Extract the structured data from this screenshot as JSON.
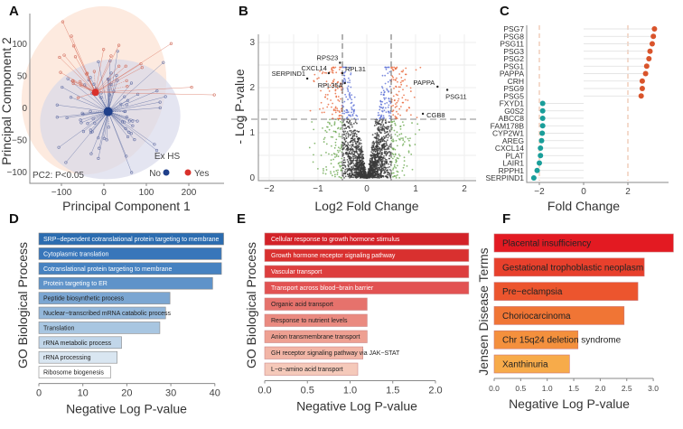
{
  "panels": {
    "A": "A",
    "B": "B",
    "C": "C",
    "D": "D",
    "E": "E",
    "F": "F"
  },
  "chart_data": [
    {
      "panel": "A",
      "type": "scatter",
      "xlabel": "Principal Component 1",
      "ylabel": "Principal Component 2",
      "xticks": [
        -100,
        0,
        100,
        200
      ],
      "yticks": [
        -100,
        -50,
        0,
        50,
        100
      ],
      "xlim": [
        -170,
        270
      ],
      "ylim": [
        -115,
        145
      ],
      "annotation": "PC2: P<0.05",
      "legend": {
        "title": "Ex HS",
        "placement": "bottom-right",
        "items": [
          {
            "name": "No",
            "color": "#1f3f8a"
          },
          {
            "name": "Yes",
            "color": "#d9312b"
          }
        ]
      },
      "centroids": [
        {
          "group": "No",
          "x": 10,
          "y": -5
        },
        {
          "group": "Yes",
          "x": -20,
          "y": 25
        }
      ]
    },
    {
      "panel": "B",
      "type": "scatter",
      "xlabel": "Log2 Fold Change",
      "ylabel": "- Log P-value",
      "xticks": [
        -2,
        -1,
        0,
        1,
        2
      ],
      "yticks": [
        0,
        1,
        2,
        3
      ],
      "xlim": [
        -2.2,
        2.2
      ],
      "ylim": [
        -0.05,
        3.1
      ],
      "thresholds": {
        "fold_change": [
          -0.5,
          0.5
        ],
        "p_value": 1.3
      },
      "colors": {
        "up_sig": "#e8663a",
        "down_sig_small": "#5b6fd6",
        "fc_only": "#6aa84f",
        "ns": "#3a3a3a"
      },
      "labels": [
        {
          "text": "RPS23",
          "x": -0.55,
          "y": 2.55
        },
        {
          "text": "CXCL14",
          "x": -0.78,
          "y": 2.32
        },
        {
          "text": "RPL31",
          "x": -0.5,
          "y": 2.32
        },
        {
          "text": "SERPIND1",
          "x": -1.22,
          "y": 2.2
        },
        {
          "text": "RPL35A",
          "x": -0.45,
          "y": 2.1
        },
        {
          "text": "PAPPA",
          "x": 1.45,
          "y": 2.02
        },
        {
          "text": "PSG11",
          "x": 1.65,
          "y": 1.95
        },
        {
          "text": "CGB8",
          "x": 1.15,
          "y": 1.42
        }
      ]
    },
    {
      "panel": "C",
      "type": "scatter",
      "xlabel": "Fold Change",
      "xticks": [
        -2,
        0,
        2
      ],
      "xlim": [
        -2.6,
        3.4
      ],
      "reference_lines": [
        -2,
        2
      ],
      "colors": {
        "up": "#d9542b",
        "down": "#1a9e9a"
      },
      "genes": [
        "PSG7",
        "PSG8",
        "PSG11",
        "PSG3",
        "PSG2",
        "PSG1",
        "PAPPA",
        "CRH",
        "PSG9",
        "PSG5",
        "FXYD1",
        "G0S2",
        "ABCC8",
        "FAM178B",
        "CYP2W1",
        "AREG",
        "CXCL14",
        "PLAT",
        "LAIR1",
        "RPPH1",
        "SERPIND1"
      ],
      "values": [
        3.2,
        3.15,
        3.1,
        3.0,
        2.95,
        2.85,
        2.8,
        2.65,
        2.65,
        2.6,
        -1.85,
        -1.85,
        -1.85,
        -1.85,
        -1.87,
        -1.9,
        -1.95,
        -1.95,
        -2.0,
        -2.1,
        -2.25
      ]
    },
    {
      "panel": "D",
      "type": "bar",
      "orientation": "horizontal",
      "xlabel": "Negative Log P-value",
      "ylabel": "GO Biological Process",
      "xticks": [
        0,
        10,
        20,
        30,
        40
      ],
      "xlim": [
        0,
        42
      ],
      "categories": [
        "SRP−dependent cotranslational protein targeting to membrane",
        "Cytoplasmic translation",
        "Cotranslational protein targeting to membrane",
        "Protein targeting to ER",
        "Peptide biosynthetic process",
        "Nuclear−transcribed mRNA catabolic process",
        "Translation",
        "rRNA metabolic process",
        "rRNA processing",
        "Ribosome biogenesis"
      ],
      "values": [
        42,
        41.5,
        41.5,
        39.5,
        29.8,
        28.8,
        27.5,
        18.8,
        17.8,
        16.3
      ],
      "colors": [
        "#2b6cb0",
        "#3876ba",
        "#4682c1",
        "#5f93c9",
        "#7ba6d2",
        "#93b7da",
        "#a8c6e1",
        "#c1d6e9",
        "#d9e6f1",
        "#ffffff"
      ]
    },
    {
      "panel": "E",
      "type": "bar",
      "orientation": "horizontal",
      "xlabel": "Negative Log P-value",
      "ylabel": "GO Biological Process",
      "xticks": [
        0.0,
        0.5,
        1.0,
        1.5,
        2.0
      ],
      "xlim": [
        0,
        2.4
      ],
      "categories": [
        "Cellular response to growth hormone stimulus",
        "Growth hormone receptor signaling pathway",
        "Vascular transport",
        "Transport across blood−brain barrier",
        "Organic acid transport",
        "Response to nutrient levels",
        "Anion transmembrane transport",
        "GH receptor signaling pathway via JAK−STAT",
        "L−α−amino acid transport"
      ],
      "values": [
        2.39,
        2.39,
        2.39,
        2.39,
        1.2,
        1.2,
        1.2,
        1.15,
        1.09
      ],
      "colors": [
        "#d32228",
        "#d9302f",
        "#dd3e3e",
        "#e25252",
        "#e6726c",
        "#ea8a80",
        "#eea092",
        "#f2b5a6",
        "#f5c9ba"
      ]
    },
    {
      "panel": "F",
      "type": "bar",
      "orientation": "horizontal",
      "xlabel": "Negative Log P-value",
      "ylabel": "Jensen Disease Terms",
      "xticks": [
        0.0,
        0.5,
        1.0,
        1.5,
        2.0,
        2.5,
        3.0
      ],
      "xlim": [
        0,
        3.4
      ],
      "categories": [
        "Placental insufficiency",
        "Gestational trophoblastic neoplasm",
        "Pre−eclampsia",
        "Choriocarcinoma",
        "Chr 15q24 deletion syndrome",
        "Xanthinuria"
      ],
      "values": [
        3.38,
        2.83,
        2.71,
        2.45,
        1.58,
        1.42
      ],
      "colors": [
        "#e31a22",
        "#e8402c",
        "#ec552e",
        "#f07535",
        "#f4903d",
        "#f7ab4a"
      ]
    }
  ]
}
